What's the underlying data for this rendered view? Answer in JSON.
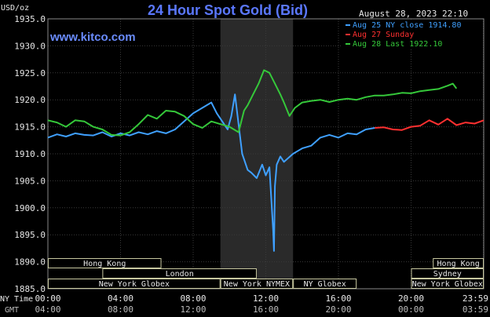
{
  "chart_data": {
    "type": "line",
    "title": "24 Hour Spot Gold (Bid)",
    "y_unit_label": "USD/oz",
    "watermark": "www.kitco.com",
    "timestamp": "August 28, 2023 22:10",
    "ylim": [
      1885.0,
      1935.0
    ],
    "y_ticks": [
      "1935.0",
      "1930.0",
      "1925.0",
      "1920.0",
      "1915.0",
      "1910.0",
      "1905.0",
      "1900.0",
      "1895.0",
      "1890.0",
      "1885.0"
    ],
    "y_tick_values": [
      1935,
      1930,
      1925,
      1920,
      1915,
      1910,
      1905,
      1900,
      1895,
      1890,
      1885
    ],
    "x_axis": {
      "row1_label": "NY Time",
      "row2_label": "GMT",
      "ny_ticks": [
        "00:00",
        "04:00",
        "08:00",
        "12:00",
        "16:00",
        "20:00",
        "23:59"
      ],
      "gmt_ticks": [
        "04:00",
        "08:00",
        "12:00",
        "16:00",
        "20:00",
        "00:00",
        "03:59"
      ],
      "tick_hours": [
        0,
        4,
        8,
        12,
        16,
        20,
        23.98
      ]
    },
    "shaded_hours": [
      9.5,
      13.5
    ],
    "legend": {
      "entries": [
        {
          "label": "Aug 25 NY close 1914.80",
          "color": "#3fa0ff"
        },
        {
          "label": "Aug 27 Sunday",
          "color": "#ff3030"
        },
        {
          "label": "Aug 28 Last 1922.10",
          "color": "#35c83a"
        }
      ]
    },
    "sessions": [
      {
        "label": "Hong Kong",
        "row": 0,
        "start": 0.0,
        "end": 6.25
      },
      {
        "label": "Hong Kong",
        "row": 0,
        "start": 21.2,
        "end": 24.0
      },
      {
        "label": "London",
        "row": 1,
        "start": 3.0,
        "end": 11.5
      },
      {
        "label": "Sydney",
        "row": 1,
        "start": 20.0,
        "end": 24.0
      },
      {
        "label": "New York Globex",
        "row": 2,
        "start": 0.0,
        "end": 9.5
      },
      {
        "label": "New York NYMEX",
        "row": 2,
        "start": 9.5,
        "end": 13.5
      },
      {
        "label": "NY Globex",
        "row": 2,
        "start": 13.5,
        "end": 17.0
      },
      {
        "label": "New York Globex",
        "row": 2,
        "start": 20.0,
        "end": 24.0
      }
    ],
    "series": [
      {
        "name": "Aug 25 NY close 1914.80",
        "color": "#3fa0ff",
        "x": [
          0,
          0.5,
          1,
          1.5,
          2,
          2.5,
          3,
          3.5,
          4,
          4.5,
          5,
          5.5,
          6,
          6.5,
          7,
          7.5,
          8,
          8.5,
          9,
          9.3,
          9.6,
          9.9,
          10.1,
          10.3,
          10.5,
          10.7,
          11,
          11.2,
          11.5,
          11.8,
          12,
          12.2,
          12.4,
          12.45,
          12.5,
          12.6,
          12.8,
          13,
          13.5,
          14,
          14.5,
          15,
          15.5,
          16,
          16.5,
          17,
          17.5,
          18
        ],
        "y": [
          1913.0,
          1913.6,
          1913.2,
          1913.8,
          1913.5,
          1913.4,
          1914.0,
          1913.2,
          1913.8,
          1913.4,
          1914.0,
          1913.6,
          1914.2,
          1913.8,
          1914.5,
          1916.0,
          1917.5,
          1918.5,
          1919.5,
          1917.5,
          1916.0,
          1914.5,
          1917.0,
          1921.0,
          1915.5,
          1910.0,
          1907.0,
          1906.5,
          1905.5,
          1908.0,
          1906.0,
          1907.5,
          1896.0,
          1892.0,
          1904.0,
          1908.0,
          1909.5,
          1908.5,
          1910.0,
          1911.0,
          1911.5,
          1913.0,
          1913.5,
          1913.0,
          1913.8,
          1913.6,
          1914.5,
          1914.8
        ]
      },
      {
        "name": "Aug 27 Sunday",
        "color": "#ff3030",
        "x": [
          18,
          18.5,
          19,
          19.5,
          20,
          20.5,
          21,
          21.5,
          22,
          22.5,
          23,
          23.5,
          24
        ],
        "y": [
          1914.8,
          1914.9,
          1914.5,
          1914.4,
          1915.0,
          1915.2,
          1916.2,
          1915.4,
          1916.5,
          1915.3,
          1915.8,
          1915.6,
          1916.2
        ]
      },
      {
        "name": "Aug 28 Last 1922.10",
        "color": "#35c83a",
        "x": [
          0,
          0.5,
          1,
          1.5,
          2,
          2.5,
          3,
          3.5,
          4,
          4.5,
          5,
          5.5,
          6,
          6.5,
          7,
          7.5,
          8,
          8.5,
          9,
          9.5,
          10,
          10.5,
          10.8,
          11,
          11.3,
          11.6,
          11.9,
          12.2,
          12.5,
          12.8,
          13,
          13.3,
          13.6,
          14,
          14.5,
          15,
          15.5,
          16,
          16.5,
          17,
          17.5,
          18,
          18.5,
          19,
          19.5,
          20,
          20.5,
          21,
          21.5,
          22,
          22.3,
          22.5
        ],
        "y": [
          1916.2,
          1915.8,
          1915.0,
          1916.2,
          1916.0,
          1915.0,
          1914.5,
          1913.5,
          1913.4,
          1914.0,
          1915.5,
          1917.2,
          1916.5,
          1918.0,
          1917.8,
          1917.0,
          1915.5,
          1914.8,
          1916.0,
          1915.5,
          1915.0,
          1914.0,
          1918.0,
          1919.0,
          1921.0,
          1923.0,
          1925.5,
          1925.0,
          1923.0,
          1921.0,
          1919.5,
          1917.0,
          1918.5,
          1919.5,
          1919.8,
          1920.0,
          1919.6,
          1920.0,
          1920.2,
          1920.0,
          1920.5,
          1920.8,
          1920.8,
          1921.0,
          1921.3,
          1921.2,
          1921.6,
          1921.8,
          1922.0,
          1922.6,
          1923.0,
          1922.1
        ]
      }
    ]
  }
}
